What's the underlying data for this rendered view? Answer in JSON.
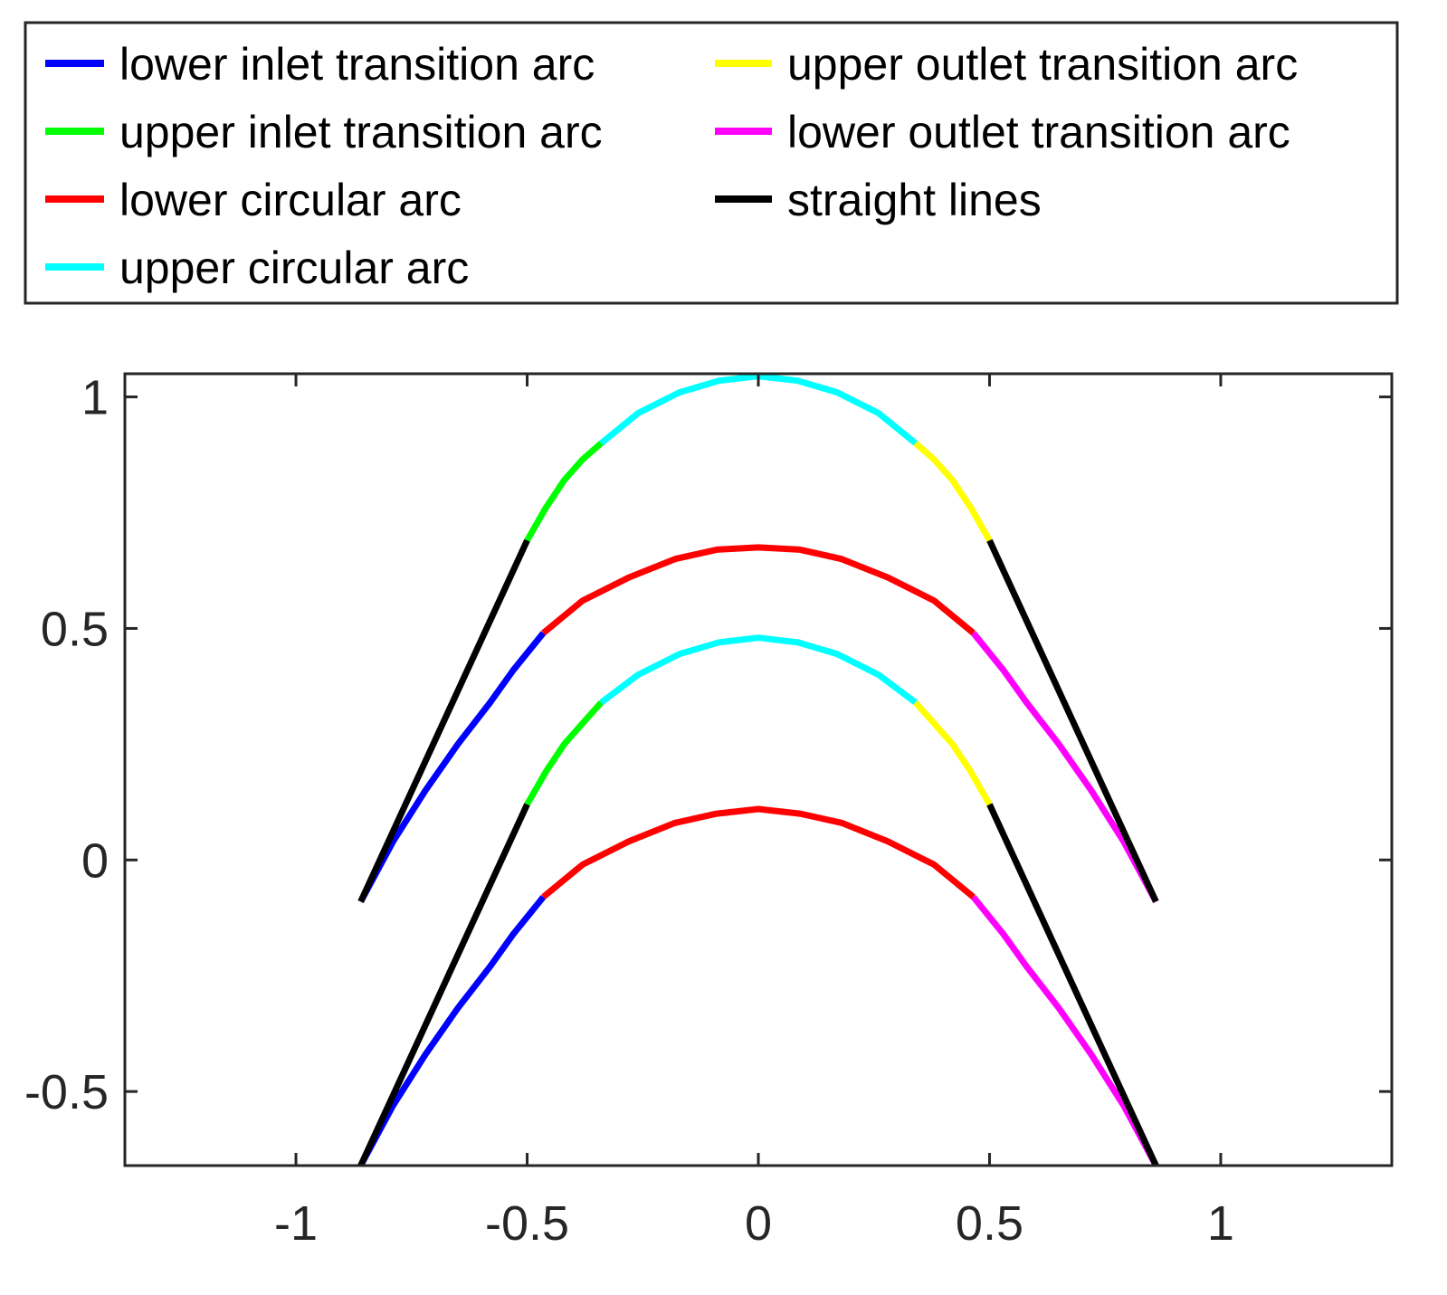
{
  "chart_data": {
    "type": "line",
    "title": "",
    "xlabel": "",
    "ylabel": "",
    "xlim": [
      -1.37,
      1.37
    ],
    "ylim": [
      -0.66,
      1.05
    ],
    "xticks": [
      -1,
      -0.5,
      0,
      0.5,
      1
    ],
    "xtick_labels": [
      "-1",
      "-0.5",
      "0",
      "0.5",
      "1"
    ],
    "yticks": [
      -0.5,
      0,
      0.5,
      1
    ],
    "ytick_labels": [
      "-0.5",
      "0",
      "0.5",
      "1"
    ],
    "grid": false,
    "legend_position": "top, outside plot",
    "legend": [
      {
        "key": "lower_inlet",
        "label": "lower inlet transition arc",
        "color": "#0000ff"
      },
      {
        "key": "upper_inlet",
        "label": "upper inlet transition arc",
        "color": "#00ff00"
      },
      {
        "key": "lower_circular",
        "label": "lower circular arc",
        "color": "#ff0000"
      },
      {
        "key": "upper_circular",
        "label": "upper circular arc",
        "color": "#00ffff"
      },
      {
        "key": "upper_outlet",
        "label": "upper outlet transition arc",
        "color": "#ffff00"
      },
      {
        "key": "lower_outlet",
        "label": "lower outlet transition arc",
        "color": "#ff00ff"
      },
      {
        "key": "straight",
        "label": "straight lines",
        "color": "#000000"
      }
    ],
    "series": [
      {
        "name": "lower inlet transition arc (blade 1)",
        "key": "lower_inlet",
        "x": [
          -0.86,
          -0.79,
          -0.72,
          -0.65,
          -0.58,
          -0.53,
          -0.465
        ],
        "y": [
          -0.09,
          0.04,
          0.15,
          0.25,
          0.34,
          0.41,
          0.49
        ]
      },
      {
        "name": "lower circular arc (blade 1)",
        "key": "lower_circular",
        "x": [
          -0.465,
          -0.38,
          -0.28,
          -0.18,
          -0.09,
          0,
          0.09,
          0.18,
          0.28,
          0.38,
          0.465
        ],
        "y": [
          0.49,
          0.56,
          0.61,
          0.65,
          0.67,
          0.675,
          0.67,
          0.65,
          0.61,
          0.56,
          0.49
        ]
      },
      {
        "name": "lower outlet transition arc (blade 1)",
        "key": "lower_outlet",
        "x": [
          0.465,
          0.53,
          0.58,
          0.65,
          0.72,
          0.79,
          0.86
        ],
        "y": [
          0.49,
          0.41,
          0.34,
          0.25,
          0.15,
          0.04,
          -0.09
        ]
      },
      {
        "name": "upper inlet transition arc (blade 1)",
        "key": "upper_inlet",
        "x": [
          -0.5,
          -0.46,
          -0.42,
          -0.38,
          -0.34
        ],
        "y": [
          0.69,
          0.76,
          0.82,
          0.865,
          0.9
        ]
      },
      {
        "name": "upper circular arc (blade 1)",
        "key": "upper_circular",
        "x": [
          -0.34,
          -0.26,
          -0.17,
          -0.085,
          0,
          0.085,
          0.17,
          0.26,
          0.34
        ],
        "y": [
          0.9,
          0.965,
          1.01,
          1.035,
          1.045,
          1.035,
          1.01,
          0.965,
          0.9
        ]
      },
      {
        "name": "upper outlet transition arc (blade 1)",
        "key": "upper_outlet",
        "x": [
          0.34,
          0.38,
          0.42,
          0.46,
          0.5
        ],
        "y": [
          0.9,
          0.865,
          0.82,
          0.76,
          0.69
        ]
      },
      {
        "name": "straight line inlet (blade 1)",
        "key": "straight",
        "x": [
          -0.86,
          -0.5
        ],
        "y": [
          -0.09,
          0.69
        ]
      },
      {
        "name": "straight line outlet (blade 1)",
        "key": "straight",
        "x": [
          0.5,
          0.86
        ],
        "y": [
          0.69,
          -0.09
        ]
      },
      {
        "name": "lower inlet transition arc (blade 2)",
        "key": "lower_inlet",
        "x": [
          -0.86,
          -0.79,
          -0.72,
          -0.65,
          -0.58,
          -0.53,
          -0.465
        ],
        "y": [
          -0.66,
          -0.53,
          -0.42,
          -0.32,
          -0.23,
          -0.16,
          -0.08
        ]
      },
      {
        "name": "lower circular arc (blade 2)",
        "key": "lower_circular",
        "x": [
          -0.465,
          -0.38,
          -0.28,
          -0.18,
          -0.09,
          0,
          0.09,
          0.18,
          0.28,
          0.38,
          0.465
        ],
        "y": [
          -0.08,
          -0.01,
          0.04,
          0.08,
          0.1,
          0.11,
          0.1,
          0.08,
          0.04,
          -0.01,
          -0.08
        ]
      },
      {
        "name": "lower outlet transition arc (blade 2)",
        "key": "lower_outlet",
        "x": [
          0.465,
          0.53,
          0.58,
          0.65,
          0.72,
          0.79,
          0.86
        ],
        "y": [
          -0.08,
          -0.16,
          -0.23,
          -0.32,
          -0.42,
          -0.53,
          -0.66
        ]
      },
      {
        "name": "upper inlet transition arc (blade 2)",
        "key": "upper_inlet",
        "x": [
          -0.5,
          -0.46,
          -0.42,
          -0.38,
          -0.34
        ],
        "y": [
          0.12,
          0.19,
          0.25,
          0.295,
          0.34
        ]
      },
      {
        "name": "upper circular arc (blade 2)",
        "key": "upper_circular",
        "x": [
          -0.34,
          -0.26,
          -0.17,
          -0.085,
          0,
          0.085,
          0.17,
          0.26,
          0.34
        ],
        "y": [
          0.34,
          0.4,
          0.445,
          0.47,
          0.48,
          0.47,
          0.445,
          0.4,
          0.34
        ]
      },
      {
        "name": "upper outlet transition arc (blade 2)",
        "key": "upper_outlet",
        "x": [
          0.34,
          0.38,
          0.42,
          0.46,
          0.5
        ],
        "y": [
          0.34,
          0.295,
          0.25,
          0.19,
          0.12
        ]
      },
      {
        "name": "straight line inlet (blade 2)",
        "key": "straight",
        "x": [
          -0.86,
          -0.5
        ],
        "y": [
          -0.66,
          0.12
        ]
      },
      {
        "name": "straight line outlet (blade 2)",
        "key": "straight",
        "x": [
          0.5,
          0.86
        ],
        "y": [
          0.12,
          -0.66
        ]
      }
    ]
  }
}
